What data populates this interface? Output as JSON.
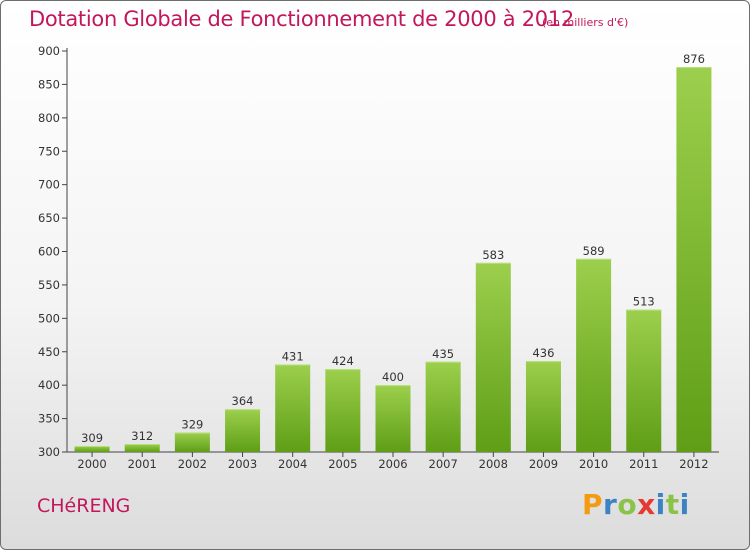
{
  "header": {
    "title": "Dotation Globale de Fonctionnement de 2000 à 2012",
    "unit_note": "(en milliers d'€)"
  },
  "footer": {
    "commune": "CHéRENG",
    "brand": "Proxiti"
  },
  "colors": {
    "title": "#c2185b",
    "bar_light": "#9ccf4d",
    "bar_dark": "#5f9e16",
    "logo_letters": [
      "#f39c12",
      "#3b83c4",
      "#8bc34a",
      "#e53935",
      "#3b83c4",
      "#8bc34a",
      "#3b83c4"
    ]
  },
  "chart_data": {
    "type": "bar",
    "title": "Dotation Globale de Fonctionnement de 2000 à 2012",
    "subtitle": "(en milliers d'€)",
    "categories": [
      "2000",
      "2001",
      "2002",
      "2003",
      "2004",
      "2005",
      "2006",
      "2007",
      "2008",
      "2009",
      "2010",
      "2011",
      "2012"
    ],
    "values": [
      309,
      312,
      329,
      364,
      431,
      424,
      400,
      435,
      583,
      436,
      589,
      513,
      876
    ],
    "data_labels": [
      "309",
      "312",
      "329",
      "364",
      "431",
      "424",
      "400",
      "435",
      "583",
      "436",
      "589",
      "513",
      "876"
    ],
    "ylim": [
      300,
      900
    ],
    "yticks": [
      300,
      350,
      400,
      450,
      500,
      550,
      600,
      650,
      700,
      750,
      800,
      850,
      900
    ],
    "xlabel": "",
    "ylabel": "",
    "grid": false,
    "legend": "none"
  }
}
